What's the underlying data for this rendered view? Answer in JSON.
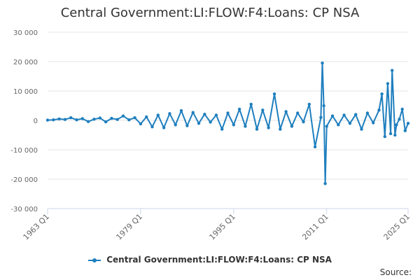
{
  "chart_data": {
    "type": "line",
    "title": "Central Government:LI:FLOW:F4:Loans: CP NSA",
    "x_axis": {
      "start_year": 1963,
      "end_year": 2025,
      "tick_labels": [
        "1963 Q1",
        "1979 Q1",
        "1995 Q1",
        "2011 Q1",
        "2025 Q1"
      ]
    },
    "y_axis": {
      "ylim": [
        -30000,
        30000
      ],
      "tick_values": [
        30000,
        20000,
        10000,
        0,
        -10000,
        -20000,
        -30000
      ],
      "tick_labels": [
        "30 000",
        "20 000",
        "10 000",
        "0",
        "-10 000",
        "-20 000",
        "-30 000"
      ]
    },
    "grid": "horizontal",
    "legend_position": "bottom-center",
    "series": [
      {
        "name": "Central Government:LI:FLOW:F4:Loans: CP NSA",
        "color": "#1f7fbe",
        "points": [
          [
            "1963 Q1",
            100
          ],
          [
            "1964 Q1",
            200
          ],
          [
            "1965 Q1",
            500
          ],
          [
            "1966 Q1",
            300
          ],
          [
            "1967 Q1",
            900
          ],
          [
            "1968 Q1",
            200
          ],
          [
            "1969 Q1",
            600
          ],
          [
            "1970 Q1",
            -400
          ],
          [
            "1971 Q1",
            400
          ],
          [
            "1972 Q1",
            800
          ],
          [
            "1973 Q1",
            -500
          ],
          [
            "1974 Q1",
            700
          ],
          [
            "1975 Q1",
            300
          ],
          [
            "1976 Q1",
            1500
          ],
          [
            "1977 Q1",
            200
          ],
          [
            "1978 Q1",
            900
          ],
          [
            "1979 Q1",
            -1200
          ],
          [
            "1980 Q1",
            1200
          ],
          [
            "1981 Q1",
            -2200
          ],
          [
            "1982 Q1",
            1800
          ],
          [
            "1983 Q1",
            -2500
          ],
          [
            "1984 Q1",
            2300
          ],
          [
            "1985 Q1",
            -1500
          ],
          [
            "1986 Q1",
            3300
          ],
          [
            "1987 Q1",
            -1800
          ],
          [
            "1988 Q1",
            2700
          ],
          [
            "1989 Q1",
            -1000
          ],
          [
            "1990 Q1",
            2100
          ],
          [
            "1991 Q1",
            -600
          ],
          [
            "1992 Q1",
            1800
          ],
          [
            "1993 Q1",
            -3000
          ],
          [
            "1994 Q1",
            2500
          ],
          [
            "1995 Q1",
            -1500
          ],
          [
            "1996 Q1",
            3800
          ],
          [
            "1997 Q1",
            -2000
          ],
          [
            "1998 Q1",
            5500
          ],
          [
            "1999 Q1",
            -3000
          ],
          [
            "2000 Q1",
            3500
          ],
          [
            "2001 Q1",
            -2500
          ],
          [
            "2002 Q1",
            9000
          ],
          [
            "2003 Q1",
            -3000
          ],
          [
            "2004 Q1",
            3000
          ],
          [
            "2005 Q1",
            -2000
          ],
          [
            "2006 Q1",
            2500
          ],
          [
            "2007 Q1",
            -500
          ],
          [
            "2008 Q1",
            5500
          ],
          [
            "2009 Q1",
            -9000
          ],
          [
            "2010 Q1",
            1000
          ],
          [
            "2010 Q2",
            19500
          ],
          [
            "2010 Q3",
            5000
          ],
          [
            "2010 Q4",
            -21500
          ],
          [
            "2011 Q1",
            -2000
          ],
          [
            "2012 Q1",
            1500
          ],
          [
            "2013 Q1",
            -1500
          ],
          [
            "2014 Q1",
            1800
          ],
          [
            "2015 Q1",
            -1000
          ],
          [
            "2016 Q1",
            2000
          ],
          [
            "2017 Q1",
            -3000
          ],
          [
            "2018 Q1",
            2500
          ],
          [
            "2019 Q1",
            -800
          ],
          [
            "2020 Q1",
            3500
          ],
          [
            "2020 Q3",
            9000
          ],
          [
            "2021 Q1",
            -5500
          ],
          [
            "2021 Q3",
            12500
          ],
          [
            "2022 Q1",
            -4500
          ],
          [
            "2022 Q2",
            17000
          ],
          [
            "2022 Q4",
            -5000
          ],
          [
            "2023 Q1",
            -1500
          ],
          [
            "2023 Q3",
            400
          ],
          [
            "2024 Q1",
            3800
          ],
          [
            "2024 Q3",
            -3500
          ],
          [
            "2025 Q1",
            -1000
          ]
        ]
      }
    ],
    "source_label": "Source:"
  }
}
